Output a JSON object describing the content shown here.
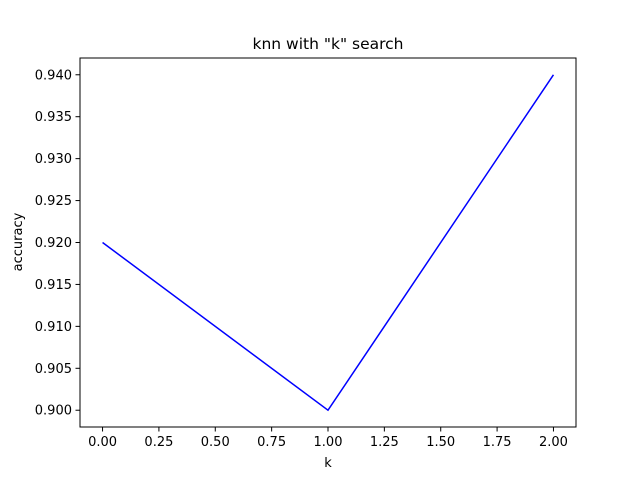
{
  "chart_data": {
    "type": "line",
    "title": "knn with \"k\" search",
    "xlabel": "k",
    "ylabel": "accuracy",
    "series": [
      {
        "x": [
          0.0,
          1.0,
          2.0
        ],
        "values": [
          0.92,
          0.9,
          0.94
        ],
        "color": "#0000ff"
      }
    ],
    "xlim": [
      -0.1,
      2.1
    ],
    "ylim": [
      0.898,
      0.942
    ],
    "xticks": [
      0.0,
      0.25,
      0.5,
      0.75,
      1.0,
      1.25,
      1.5,
      1.75,
      2.0
    ],
    "xtick_labels": [
      "0.00",
      "0.25",
      "0.50",
      "0.75",
      "1.00",
      "1.25",
      "1.50",
      "1.75",
      "2.00"
    ],
    "yticks": [
      0.9,
      0.905,
      0.91,
      0.915,
      0.92,
      0.925,
      0.93,
      0.935,
      0.94
    ],
    "ytick_labels": [
      "0.900",
      "0.905",
      "0.910",
      "0.915",
      "0.920",
      "0.925",
      "0.930",
      "0.935",
      "0.940"
    ],
    "grid": false,
    "legend": "none"
  }
}
